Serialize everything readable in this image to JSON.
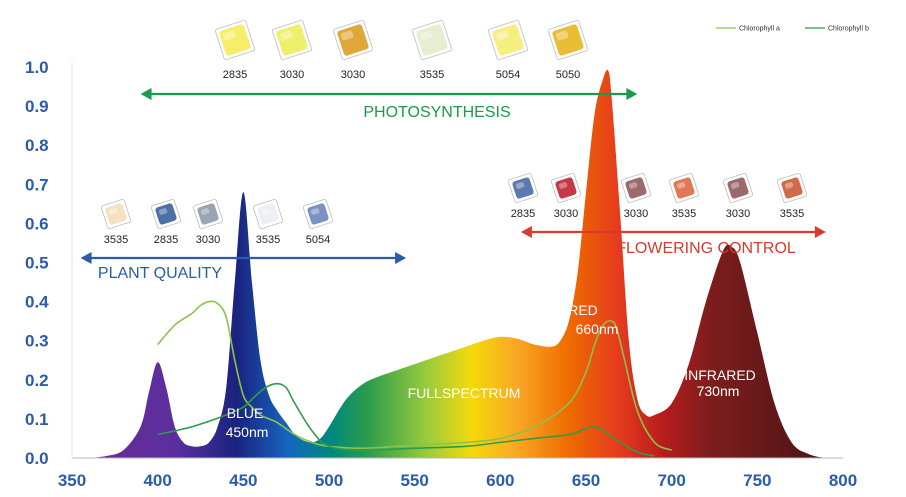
{
  "chart_data": {
    "type": "area",
    "x_axis": {
      "min": 350,
      "max": 800,
      "ticks": [
        350,
        400,
        450,
        500,
        550,
        600,
        650,
        700,
        750,
        800
      ]
    },
    "y_axis": {
      "min": 0,
      "max": 1.0,
      "ticks": [
        "0.0",
        "0.1",
        "0.2",
        "0.3",
        "0.4",
        "0.5",
        "0.6",
        "0.7",
        "0.8",
        "0.9",
        "1.0"
      ]
    },
    "spectrum": {
      "x": [
        360,
        370,
        380,
        390,
        395,
        400,
        405,
        410,
        415,
        420,
        425,
        430,
        435,
        440,
        445,
        450,
        455,
        460,
        465,
        470,
        475,
        480,
        485,
        490,
        495,
        500,
        510,
        520,
        530,
        540,
        550,
        560,
        570,
        580,
        590,
        600,
        610,
        620,
        630,
        635,
        640,
        645,
        650,
        655,
        660,
        663,
        665,
        670,
        675,
        680,
        685,
        690,
        700,
        710,
        720,
        730,
        735,
        740,
        750,
        760,
        770,
        780,
        790
      ],
      "y": [
        0.0,
        0.005,
        0.02,
        0.08,
        0.17,
        0.245,
        0.18,
        0.08,
        0.04,
        0.03,
        0.03,
        0.04,
        0.08,
        0.18,
        0.45,
        0.68,
        0.45,
        0.25,
        0.16,
        0.12,
        0.09,
        0.06,
        0.045,
        0.04,
        0.05,
        0.08,
        0.15,
        0.19,
        0.21,
        0.225,
        0.24,
        0.255,
        0.27,
        0.285,
        0.3,
        0.31,
        0.305,
        0.29,
        0.285,
        0.3,
        0.35,
        0.47,
        0.68,
        0.88,
        0.97,
        0.99,
        0.92,
        0.62,
        0.3,
        0.15,
        0.11,
        0.11,
        0.14,
        0.24,
        0.4,
        0.53,
        0.54,
        0.5,
        0.32,
        0.14,
        0.04,
        0.01,
        0.0
      ],
      "segments": [
        {
          "name": "BLUE",
          "color": "#1a237e"
        },
        {
          "name": "RED",
          "color": "#a51e22"
        },
        {
          "name": "INFRARED",
          "color": "#5c1a1a"
        }
      ]
    },
    "series": [
      {
        "name": "Chlorophyll a",
        "color": "#8bc34a",
        "x": [
          400,
          410,
          420,
          425,
          430,
          435,
          440,
          445,
          450,
          455,
          460,
          465,
          470,
          480,
          490,
          500,
          520,
          540,
          560,
          580,
          600,
          620,
          640,
          650,
          655,
          660,
          665,
          668,
          672,
          680,
          690,
          700
        ],
        "y": [
          0.29,
          0.34,
          0.37,
          0.39,
          0.4,
          0.395,
          0.36,
          0.25,
          0.16,
          0.13,
          0.11,
          0.1,
          0.09,
          0.06,
          0.04,
          0.03,
          0.025,
          0.03,
          0.035,
          0.04,
          0.05,
          0.08,
          0.14,
          0.22,
          0.29,
          0.34,
          0.35,
          0.33,
          0.26,
          0.12,
          0.04,
          0.02
        ]
      },
      {
        "name": "Chlorophyll b",
        "color": "#2e9d4a",
        "x": [
          400,
          420,
          440,
          450,
          455,
          460,
          465,
          470,
          475,
          480,
          490,
          500,
          520,
          550,
          580,
          600,
          620,
          640,
          650,
          655,
          660,
          670,
          680,
          690
        ],
        "y": [
          0.06,
          0.08,
          0.11,
          0.13,
          0.15,
          0.17,
          0.185,
          0.19,
          0.18,
          0.14,
          0.07,
          0.03,
          0.02,
          0.025,
          0.03,
          0.04,
          0.05,
          0.06,
          0.075,
          0.08,
          0.07,
          0.04,
          0.015,
          0.005
        ]
      }
    ],
    "legend": [
      "Chlorophyll a",
      "Chlorophyll b"
    ],
    "legend_position": "top-right"
  },
  "annotations": {
    "photosynthesis": {
      "label": "PHOTOSYNTHESIS",
      "color": "#1a9a4a",
      "x_start": 390,
      "x_end": 680,
      "leds": [
        "2835",
        "3030",
        "3030",
        "3535",
        "5054",
        "5050"
      ]
    },
    "plant_quality": {
      "label": "PLANT QUALITY",
      "color": "#2a5caa",
      "x_start": 355,
      "x_end": 545,
      "leds": [
        "3535",
        "2835",
        "3030",
        "3535",
        "5054"
      ]
    },
    "flowering_control": {
      "label": "FLOWERING CONTROL",
      "color": "#d93a2e",
      "x_start": 612,
      "x_end": 790,
      "leds": [
        "2835",
        "3030",
        "3030",
        "3535",
        "3030",
        "3535"
      ]
    }
  },
  "peak_labels": {
    "blue": [
      "BLUE",
      "450nm"
    ],
    "red": [
      "RED",
      "660nm"
    ],
    "infrared": [
      "INFRARED",
      "730nm"
    ],
    "fullspectrum": "FULLSPECTRUM"
  }
}
